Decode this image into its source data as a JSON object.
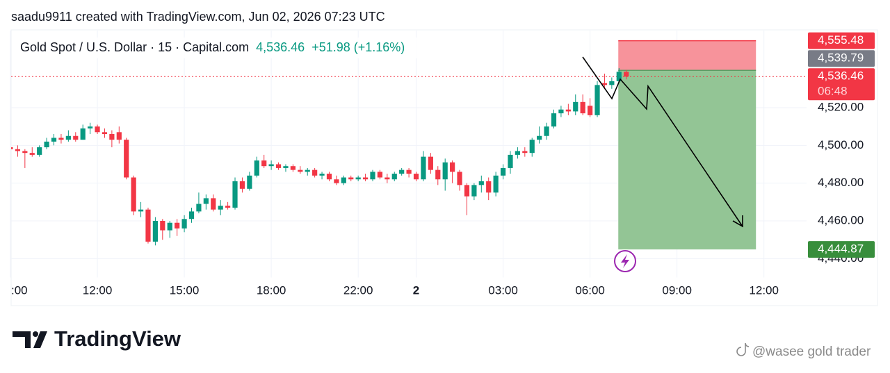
{
  "header": "saadu9911 created with TradingView.com, Jun 02, 2026 07:23 UTC",
  "chart_data": {
    "type": "candlestick",
    "legend": {
      "symbol": "Gold Spot / U.S. Dollar · 15 · Capital.com",
      "last": "4,536.46",
      "change": "+51.98 (+1.16%)"
    },
    "categories": [
      ":00",
      null,
      null,
      null,
      null,
      null,
      null,
      null,
      null,
      null,
      null,
      null,
      "12:00",
      null,
      null,
      null,
      null,
      null,
      null,
      null,
      null,
      null,
      null,
      null,
      "15:00",
      null,
      null,
      null,
      null,
      null,
      null,
      null,
      null,
      null,
      null,
      null,
      "18:00",
      null,
      null,
      null,
      null,
      null,
      null,
      null,
      null,
      null,
      null,
      null,
      "22:00",
      null,
      null,
      null,
      null,
      null,
      null,
      null,
      "2",
      null,
      null,
      null,
      null,
      null,
      null,
      null,
      null,
      null,
      null,
      null,
      "03:00",
      null,
      null,
      null,
      null,
      null,
      null,
      null,
      null,
      null,
      null,
      null,
      "06:00",
      null,
      null,
      null,
      null,
      null,
      null,
      null,
      null,
      null,
      null,
      null,
      "09:00",
      null,
      null,
      null,
      null,
      null,
      null,
      null,
      null,
      null,
      null,
      null,
      "12:00",
      null,
      null,
      null,
      null,
      null
    ],
    "open": [
      4499,
      4498,
      4497,
      4496,
      4495,
      4499,
      4502,
      4504,
      4503,
      4505,
      4503,
      4509,
      4510,
      4507,
      4506,
      4507,
      4503,
      4483,
      4465,
      4466,
      4449,
      4460,
      4455,
      4459,
      4456,
      4461,
      4465,
      4469,
      4472,
      4466,
      4468,
      4467,
      4481,
      4477,
      4484,
      4492,
      4489,
      4490,
      4488,
      4489,
      4487,
      4486,
      4487,
      4484,
      4485,
      4482,
      4480,
      4483,
      4482,
      4483,
      4482,
      4486,
      4483,
      4482,
      4485,
      4487,
      4485,
      4482,
      4494,
      4487,
      4482,
      4491,
      4486,
      4479,
      4473,
      4479,
      4481,
      4475,
      4484,
      4488,
      4495,
      4497,
      4496,
      4503,
      4505,
      4510,
      4517,
      4519,
      4518,
      4523,
      4521,
      4516,
      4533,
      4532,
      4534,
      4539,
      null,
      null,
      null,
      null,
      null,
      null,
      null,
      null,
      null,
      null,
      null,
      null,
      null,
      null,
      null,
      null,
      null,
      null,
      null,
      null,
      null,
      null,
      null,
      null
    ],
    "high": [
      4500,
      4500,
      4498,
      4499,
      4500,
      4504,
      4506,
      4506,
      4508,
      4507,
      4511,
      4512,
      4511,
      4509,
      4508,
      4510,
      4504,
      4484,
      4470,
      4467,
      4462,
      4461,
      4460,
      4461,
      4463,
      4467,
      4475,
      4474,
      4474,
      4471,
      4470,
      4483,
      4483,
      4486,
      4494,
      4495,
      4492,
      4491,
      4490,
      4490,
      4489,
      4488,
      4488,
      4486,
      4486,
      4484,
      4484,
      4484,
      4484,
      4485,
      4487,
      4487,
      4485,
      4486,
      4488,
      4488,
      4486,
      4497,
      4496,
      4489,
      4493,
      4492,
      4487,
      4480,
      4480,
      4484,
      4483,
      4486,
      4490,
      4497,
      4499,
      4499,
      4504,
      4510,
      4512,
      4519,
      4521,
      4522,
      4527,
      4527,
      4525,
      4534,
      4538,
      4536,
      4541,
      4540,
      null,
      null,
      null,
      null,
      null,
      null,
      null,
      null,
      null,
      null,
      null,
      null,
      null,
      null,
      null,
      null,
      null,
      null,
      null,
      null,
      null,
      null,
      null,
      null
    ],
    "low": [
      4496,
      4494,
      4488,
      4494,
      4494,
      4498,
      4500,
      4501,
      4502,
      4502,
      4503,
      4506,
      4506,
      4504,
      4499,
      4501,
      4482,
      4463,
      4462,
      4448,
      4447,
      4450,
      4451,
      4452,
      4454,
      4459,
      4464,
      4466,
      4465,
      4463,
      4466,
      4466,
      4475,
      4476,
      4483,
      4488,
      4487,
      4487,
      4486,
      4486,
      4485,
      4484,
      4483,
      4482,
      4481,
      4479,
      4479,
      4481,
      4481,
      4481,
      4481,
      4482,
      4480,
      4481,
      4484,
      4483,
      4481,
      4481,
      4485,
      4479,
      4476,
      4480,
      4476,
      4463,
      4471,
      4475,
      4471,
      4473,
      4482,
      4485,
      4493,
      4494,
      4494,
      4501,
      4503,
      4509,
      4515,
      4516,
      4516,
      4516,
      4515,
      4515,
      4530,
      4530,
      4533,
      4535,
      null,
      null,
      null,
      null,
      null,
      null,
      null,
      null,
      null,
      null,
      null,
      null,
      null,
      null,
      null,
      null,
      null,
      null,
      null,
      null,
      null,
      null,
      null,
      null
    ],
    "close": [
      4498,
      4497,
      4496,
      4495,
      4499,
      4502,
      4504,
      4503,
      4505,
      4503,
      4509,
      4510,
      4507,
      4506,
      4503,
      4503,
      4483,
      4465,
      4466,
      4449,
      4460,
      4455,
      4459,
      4456,
      4461,
      4465,
      4469,
      4472,
      4466,
      4468,
      4467,
      4481,
      4477,
      4484,
      4492,
      4489,
      4490,
      4488,
      4489,
      4487,
      4486,
      4487,
      4484,
      4485,
      4482,
      4480,
      4483,
      4482,
      4483,
      4482,
      4486,
      4483,
      4482,
      4485,
      4487,
      4485,
      4482,
      4494,
      4487,
      4482,
      4491,
      4486,
      4479,
      4473,
      4479,
      4481,
      4475,
      4484,
      4488,
      4495,
      4497,
      4496,
      4503,
      4505,
      4510,
      4517,
      4519,
      4518,
      4523,
      4517,
      4516,
      4532,
      4532,
      4534,
      4539,
      4536.46,
      null,
      null,
      null,
      null,
      null,
      null,
      null,
      null,
      null,
      null,
      null,
      null,
      null,
      null,
      null,
      null,
      null,
      null,
      null,
      null,
      null,
      null,
      null,
      null
    ],
    "up_color": "#089981",
    "down_color": "#f23645",
    "ylim": [
      4430,
      4560
    ],
    "yticks": [
      {
        "value": 4440,
        "label": "4,440.00"
      },
      {
        "value": 4460,
        "label": "4,460.00"
      },
      {
        "value": 4480,
        "label": "4,480.00"
      },
      {
        "value": 4500,
        "label": "4,500.00"
      },
      {
        "value": 4520,
        "label": "4,520.00"
      }
    ],
    "grid": true,
    "position": {
      "stop": 4555.48,
      "entry": 4539.79,
      "target": 4444.87,
      "stop_color": "#f7939b",
      "target_color": "#93c595"
    },
    "price_tags": {
      "values": [
        4536.46,
        4539.79,
        4555.48,
        4444.87
      ],
      "value_labels": [
        "4,536.46",
        "4,539.79",
        "4,555.48",
        "4,444.87"
      ],
      "colors": [
        "#f23645",
        "#787b86",
        "#f23645",
        "#388e3c"
      ]
    },
    "countdown": "06:48"
  },
  "footer": {
    "logo": "TradingView",
    "watermark": "@wasee gold trader"
  }
}
